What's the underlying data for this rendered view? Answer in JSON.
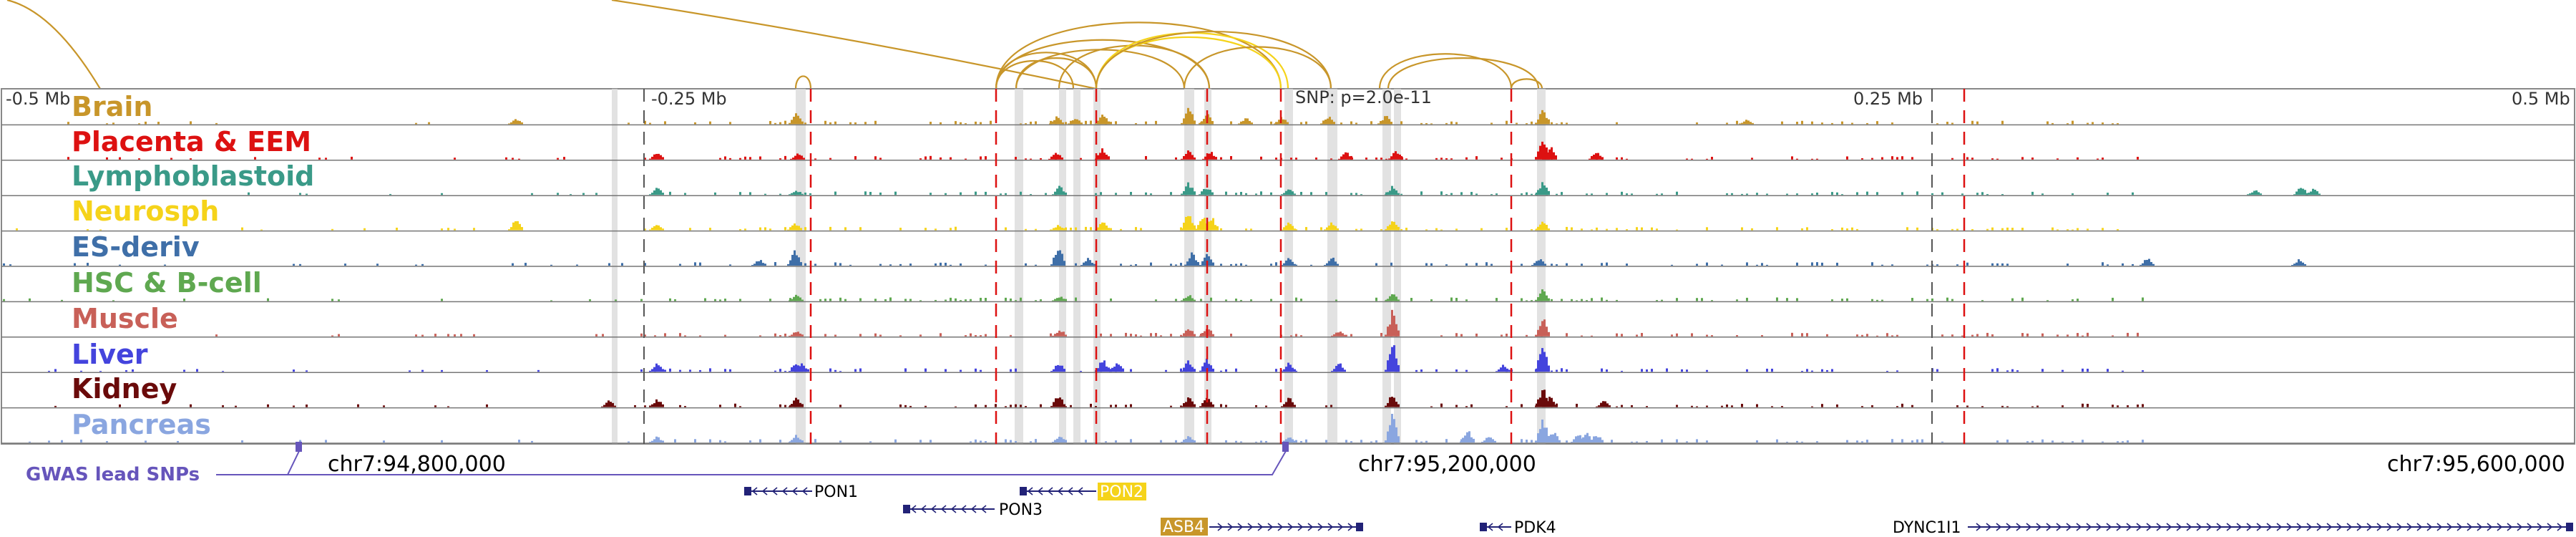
{
  "scale_labels": {
    "left_half": "-0.5 Mb",
    "left_quarter": "-0.25 Mb",
    "snp": "SNP: p=2.0e-11",
    "right_quarter": "0.25 Mb",
    "right_half": "0.5 Mb"
  },
  "tracks": [
    {
      "label": "Brain",
      "color": "#c8962a"
    },
    {
      "label": "Placenta & EEM",
      "color": "#dd1111"
    },
    {
      "label": "Lymphoblastoid",
      "color": "#3a9a88"
    },
    {
      "label": "Neurosph",
      "color": "#f5d31a"
    },
    {
      "label": "ES-deriv",
      "color": "#3f6fa8"
    },
    {
      "label": "HSC & B-cell",
      "color": "#5fa850"
    },
    {
      "label": "Muscle",
      "color": "#c86058"
    },
    {
      "label": "Liver",
      "color": "#4444dd"
    },
    {
      "label": "Kidney",
      "color": "#6a0a0a"
    },
    {
      "label": "Pancreas",
      "color": "#8aa6e0"
    }
  ],
  "coordinates": {
    "left": "chr7:94,800,000",
    "center": "chr7:95,200,000",
    "right": "chr7:95,600,000"
  },
  "gwas_label": "GWAS lead SNPs",
  "genes": {
    "pon1": "PON1",
    "pon2": "PON2",
    "pon3": "PON3",
    "asb4": "ASB4",
    "pdk4": "PDK4",
    "dync1i1": "DYNC1I1"
  },
  "colors": {
    "arc": "#c8962a",
    "arc_highlight": "#f5d31a",
    "red_marker": "#dd1111",
    "gwas": "#6655bb",
    "gene_body": "#222277",
    "gene_highlight_pon2": "#f5d31a",
    "gene_highlight_asb4": "#c8962a"
  }
}
